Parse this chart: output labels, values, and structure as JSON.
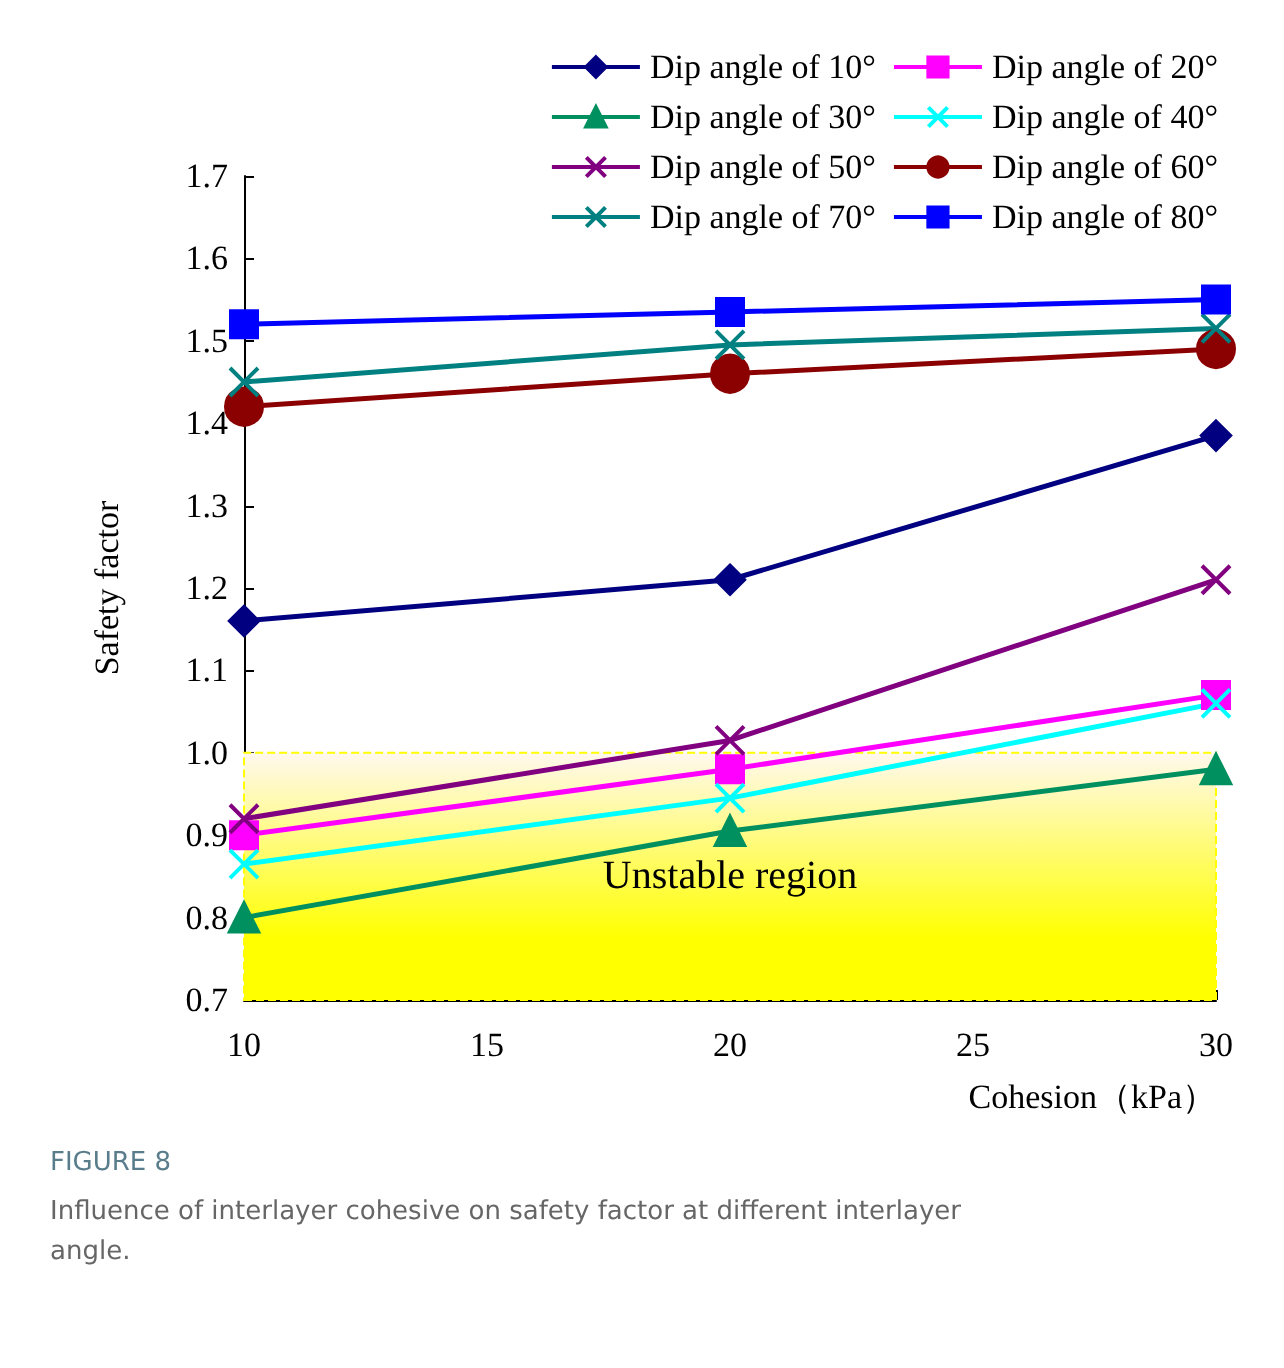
{
  "chart_data": {
    "type": "line",
    "title": "FIGURE 8",
    "subtitle": "Influence of interlayer cohesive on safety factor at different interlayer angle.",
    "xlabel": "Cohesion（kPa）",
    "ylabel": "Safety factor",
    "x": [
      10,
      20,
      30
    ],
    "xlim": [
      10,
      30
    ],
    "xticks": [
      10,
      15,
      20,
      25,
      30
    ],
    "ylim": [
      0.7,
      1.7
    ],
    "yticks": [
      {
        "value": 0.7,
        "label": "0.7"
      },
      {
        "value": 0.8,
        "label": "0.8"
      },
      {
        "value": 0.9,
        "label": "0.9"
      },
      {
        "value": 1,
        "label": "1.0"
      },
      {
        "value": 1.1,
        "label": "1.1"
      },
      {
        "value": 1.2,
        "label": "1.2"
      },
      {
        "value": 1.3,
        "label": "1.3"
      },
      {
        "value": 1.4,
        "label": "1.4"
      },
      {
        "value": 1.5,
        "label": "1.5"
      },
      {
        "value": 1.6,
        "label": "1.6"
      },
      {
        "value": 1.7,
        "label": "1.7"
      }
    ],
    "grid": false,
    "legend": "top right",
    "line_style": "solid",
    "bands": [
      {
        "axis": "y",
        "from": 0.7,
        "to": 1.0,
        "label": "Unstable region",
        "color": "#ffff00"
      }
    ],
    "series": [
      {
        "name": "Dip angle of 10°",
        "color": "#000080",
        "marker": "diamond",
        "values": [
          1.16,
          1.21,
          1.385
        ]
      },
      {
        "name": "Dip angle of 20°",
        "color": "#ff00ff",
        "marker": "square",
        "values": [
          0.9,
          0.98,
          1.07
        ]
      },
      {
        "name": "Dip angle of 30°",
        "color": "#009060",
        "marker": "triangle",
        "values": [
          0.8,
          0.905,
          0.98
        ]
      },
      {
        "name": "Dip angle of 40°",
        "color": "#00ffff",
        "marker": "cross",
        "values": [
          0.865,
          0.945,
          1.06
        ]
      },
      {
        "name": "Dip angle of 50°",
        "color": "#800080",
        "marker": "cross",
        "values": [
          0.92,
          1.015,
          1.21
        ]
      },
      {
        "name": "Dip angle of 60°",
        "color": "#8b0000",
        "marker": "circle",
        "values": [
          1.42,
          1.46,
          1.49
        ]
      },
      {
        "name": "Dip angle of 70°",
        "color": "#008080",
        "marker": "cross",
        "values": [
          1.45,
          1.495,
          1.515
        ]
      },
      {
        "name": "Dip angle of 80°",
        "color": "#0000ff",
        "marker": "square",
        "values": [
          1.52,
          1.535,
          1.55
        ]
      }
    ]
  }
}
